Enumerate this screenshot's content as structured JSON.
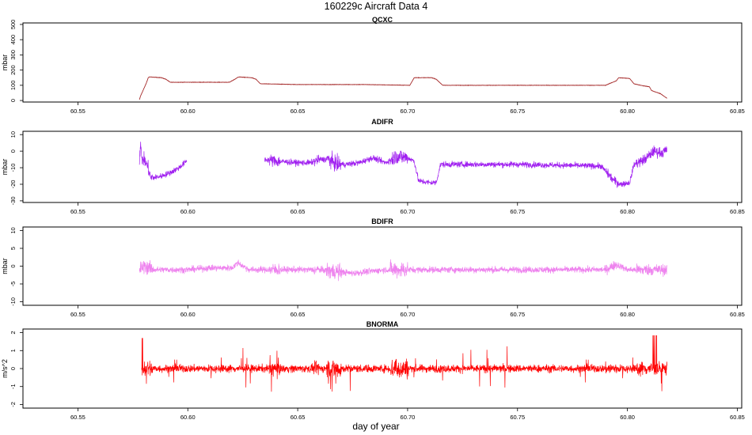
{
  "figure": {
    "title": "160229c   Aircraft Data 4",
    "xlabel": "day of year"
  },
  "chart_data": [
    {
      "type": "line",
      "title": "QCXC",
      "ylabel": "mbar",
      "xlim": [
        60.525,
        60.852
      ],
      "ylim": [
        -10,
        510
      ],
      "xticks": [
        "60.55",
        "60.60",
        "60.65",
        "60.70",
        "60.75",
        "60.80",
        "60.85"
      ],
      "yticks": [
        "0",
        "100",
        "200",
        "300",
        "400",
        "500"
      ],
      "color": "#a52a2a",
      "series": [
        {
          "name": "",
          "style": "smooth",
          "noise": 1.5,
          "x": [
            60.578,
            60.5785,
            60.581,
            60.582,
            60.5825,
            60.588,
            60.59,
            60.592,
            60.619,
            60.622,
            60.623,
            60.629,
            60.631,
            60.633,
            60.65,
            60.68,
            60.701,
            60.702,
            60.703,
            60.711,
            60.713,
            60.716,
            60.75,
            60.79,
            60.795,
            60.796,
            60.801,
            60.803,
            60.806,
            60.81,
            60.811,
            60.813,
            60.815,
            60.816,
            60.818
          ],
          "y": [
            5,
            30,
            110,
            150,
            155,
            150,
            140,
            120,
            120,
            145,
            155,
            150,
            140,
            110,
            105,
            105,
            100,
            125,
            150,
            150,
            140,
            100,
            100,
            100,
            130,
            150,
            145,
            110,
            100,
            90,
            65,
            55,
            45,
            35,
            15
          ]
        }
      ]
    },
    {
      "type": "line",
      "title": "ADIFR",
      "ylabel": "mbar",
      "xlim": [
        60.525,
        60.852
      ],
      "ylim": [
        -31,
        12
      ],
      "xticks": [
        "60.55",
        "60.60",
        "60.65",
        "60.70",
        "60.75",
        "60.80",
        "60.85"
      ],
      "yticks": [
        "-30",
        "-20",
        "-10",
        "0",
        "10"
      ],
      "color": "#a020f0",
      "series": [
        {
          "name": "",
          "style": "noisy",
          "noise": 0.9,
          "x": [
            60.578,
            60.5785,
            60.579,
            60.58,
            60.582,
            60.583,
            60.585,
            60.588,
            60.592,
            60.596,
            60.5995
          ],
          "y": [
            -5,
            5,
            -5,
            -5,
            -10,
            -16,
            -16,
            -15,
            -13,
            -10,
            -6
          ]
        },
        {
          "name": "",
          "style": "noisy",
          "noise": 0.9,
          "x": [
            60.635,
            60.64,
            60.65,
            60.656,
            60.66,
            60.664,
            60.668,
            60.672,
            60.678,
            60.684,
            60.69,
            60.695,
            60.7,
            60.703,
            60.705,
            60.71,
            60.713,
            60.715,
            60.75,
            60.788,
            60.794,
            60.797,
            60.801,
            60.803,
            60.808,
            60.812,
            60.816,
            60.818
          ],
          "y": [
            -5,
            -6,
            -7,
            -7,
            -5,
            -5,
            -8,
            -8,
            -7,
            -4,
            -7,
            -3,
            -4,
            -6,
            -18,
            -19,
            -19,
            -8,
            -8,
            -9,
            -18,
            -20,
            -19,
            -8,
            -5,
            0,
            -1,
            1
          ]
        }
      ]
    },
    {
      "type": "line",
      "title": "BDIFR",
      "ylabel": "mbar",
      "xlim": [
        60.525,
        60.852
      ],
      "ylim": [
        -11,
        11
      ],
      "xticks": [
        "60.55",
        "60.60",
        "60.65",
        "60.70",
        "60.75",
        "60.80",
        "60.85"
      ],
      "yticks": [
        "-10",
        "-5",
        "0",
        "5",
        "10"
      ],
      "color": "#ee82ee",
      "series": [
        {
          "name": "",
          "style": "noisy",
          "noise": 0.45,
          "x": [
            60.578,
            60.58,
            60.585,
            60.59,
            60.6,
            60.61,
            60.62,
            60.623,
            60.625,
            60.628,
            60.64,
            60.66,
            60.675,
            60.69,
            60.7,
            60.71,
            60.74,
            60.76,
            60.79,
            60.795,
            60.8,
            60.818
          ],
          "y": [
            -1,
            0,
            -1,
            -1,
            -1,
            -0.5,
            -0.5,
            1,
            0,
            -1,
            -1,
            -1,
            -2,
            -1,
            -1,
            -1,
            -1,
            -1,
            -1,
            0.5,
            -1,
            -1
          ]
        }
      ]
    },
    {
      "type": "line",
      "title": "BNORMA",
      "ylabel": "m/s^2",
      "xlim": [
        60.525,
        60.852
      ],
      "ylim": [
        -2.2,
        2.2
      ],
      "xticks": [
        "60.55",
        "60.60",
        "60.65",
        "60.70",
        "60.75",
        "60.80",
        "60.85"
      ],
      "yticks": [
        "-2",
        "-1",
        "0",
        "1",
        "2"
      ],
      "color": "#ff0000",
      "series": [
        {
          "name": "",
          "style": "spiky",
          "noise": 0.09,
          "x": [
            60.579,
            60.818
          ],
          "y": [
            0,
            0
          ]
        }
      ]
    }
  ]
}
